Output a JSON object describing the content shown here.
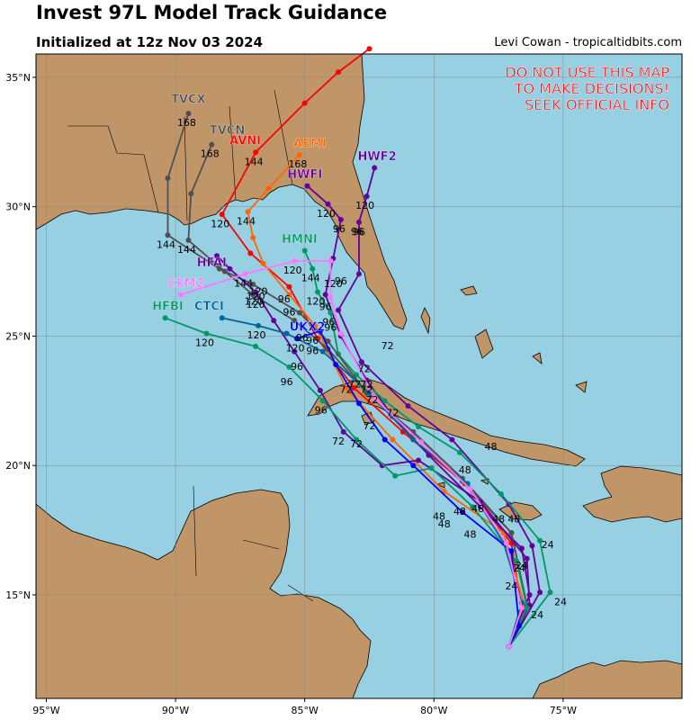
{
  "header": {
    "title": "Invest 97L Model Track Guidance",
    "subtitle": "Initialized at 12z Nov 03 2024",
    "credit": "Levi Cowan - tropicaltidbits.com"
  },
  "warning": {
    "lines": [
      "DO NOT USE THIS MAP",
      "TO MAKE DECISIONS!",
      "SEEK OFFICIAL INFO"
    ],
    "color": "#ff0000"
  },
  "colors": {
    "ocean": "#97cfe3",
    "land": "#c09668",
    "border": "#000000",
    "grid": "#888888"
  },
  "axes": {
    "lon_range": [
      -95.4,
      -70.4
    ],
    "lat_range": [
      11.0,
      35.9
    ],
    "lon_ticks": [
      {
        "lon": -95,
        "label": "95°W"
      },
      {
        "lon": -90,
        "label": "90°W"
      },
      {
        "lon": -85,
        "label": "85°W"
      },
      {
        "lon": -80,
        "label": "80°W"
      },
      {
        "lon": -75,
        "label": "75°W"
      }
    ],
    "lat_ticks": [
      {
        "lat": 15,
        "label": "15°N"
      },
      {
        "lat": 20,
        "label": "20°N"
      },
      {
        "lat": 25,
        "label": "25°N"
      },
      {
        "lat": 30,
        "label": "30°N"
      },
      {
        "lat": 35,
        "label": "35°N"
      }
    ]
  },
  "models": [
    {
      "name": "AVNI",
      "color": "#ff0000",
      "points": [
        [
          -77.1,
          13.0
        ],
        [
          -76.6,
          14.4
        ],
        [
          -77.0,
          17.0
        ],
        [
          -78.8,
          19.3
        ],
        [
          -81.2,
          21.3
        ],
        [
          -83.1,
          23.0
        ],
        [
          -84.5,
          24.9
        ],
        [
          -85.6,
          26.9
        ],
        [
          -87.1,
          28.2
        ],
        [
          -88.2,
          29.7
        ],
        [
          -86.9,
          32.1
        ],
        [
          -85.0,
          34.0
        ],
        [
          -83.7,
          35.2
        ],
        [
          -82.5,
          36.1
        ]
      ],
      "hours": [
        {
          "idx": 9,
          "label": "120"
        },
        {
          "idx": 10,
          "label": "144"
        }
      ],
      "name_at": [
        -87.3,
        32.4
      ]
    },
    {
      "name": "AEMI",
      "color": "#ff6600",
      "points": [
        [
          -77.1,
          13.0
        ],
        [
          -76.5,
          14.6
        ],
        [
          -77.3,
          17.4
        ],
        [
          -79.6,
          19.0
        ],
        [
          -81.6,
          21.0
        ],
        [
          -83.4,
          23.0
        ],
        [
          -84.6,
          25.4
        ],
        [
          -85.6,
          26.6
        ],
        [
          -86.6,
          27.8
        ],
        [
          -87.0,
          28.8
        ],
        [
          -87.2,
          29.8
        ],
        [
          -86.4,
          30.7
        ],
        [
          -85.2,
          32.0
        ]
      ],
      "hours": [
        {
          "idx": 10,
          "label": "144"
        },
        {
          "idx": 12,
          "label": "168"
        }
      ],
      "name_at": [
        -84.8,
        32.3
      ]
    },
    {
      "name": "HWF2",
      "color": "#660099",
      "points": [
        [
          -77.1,
          13.0
        ],
        [
          -75.9,
          15.1
        ],
        [
          -76.2,
          16.9
        ],
        [
          -77.1,
          18.5
        ],
        [
          -79.3,
          21.0
        ],
        [
          -81.0,
          22.3
        ],
        [
          -82.8,
          24.0
        ],
        [
          -83.7,
          26.0
        ],
        [
          -82.9,
          27.4
        ],
        [
          -82.9,
          29.4
        ],
        [
          -82.6,
          30.4
        ],
        [
          -82.3,
          31.5
        ]
      ],
      "hours": [
        {
          "idx": 9,
          "label": "96"
        },
        {
          "idx": 10,
          "label": "120"
        }
      ],
      "name_at": [
        -82.2,
        31.8
      ]
    },
    {
      "name": "HWFI",
      "color": "#660099",
      "points": [
        [
          -77.1,
          13.0
        ],
        [
          -76.3,
          15.0
        ],
        [
          -76.6,
          16.8
        ],
        [
          -78.2,
          18.4
        ],
        [
          -80.2,
          20.4
        ],
        [
          -81.6,
          21.9
        ],
        [
          -82.6,
          23.3
        ],
        [
          -83.6,
          25.0
        ],
        [
          -84.2,
          26.6
        ],
        [
          -83.9,
          28.0
        ],
        [
          -83.6,
          29.5
        ],
        [
          -84.1,
          30.1
        ],
        [
          -84.9,
          30.8
        ]
      ],
      "hours": [
        {
          "idx": 10,
          "label": "96"
        },
        {
          "idx": 11,
          "label": "120"
        }
      ],
      "name_at": [
        -85.0,
        31.1
      ]
    },
    {
      "name": "HMNI",
      "color": "#009966",
      "points": [
        [
          -77.1,
          13.0
        ],
        [
          -75.5,
          15.1
        ],
        [
          -75.9,
          17.1
        ],
        [
          -77.4,
          18.9
        ],
        [
          -79.0,
          20.5
        ],
        [
          -80.6,
          21.5
        ],
        [
          -81.9,
          22.5
        ],
        [
          -83.0,
          23.5
        ],
        [
          -83.7,
          24.3
        ],
        [
          -84.0,
          25.9
        ],
        [
          -84.5,
          26.7
        ],
        [
          -84.7,
          27.6
        ],
        [
          -85.0,
          28.3
        ]
      ],
      "hours": [
        {
          "idx": 7,
          "label": "72"
        },
        {
          "idx": 9,
          "label": "96"
        },
        {
          "idx": 10,
          "label": "120"
        },
        {
          "idx": 11,
          "label": "144"
        }
      ],
      "name_at": [
        -85.2,
        28.6
      ]
    },
    {
      "name": "TVCX",
      "color": "#505050",
      "points": [
        [
          -77.1,
          13.0
        ],
        [
          -76.4,
          14.6
        ],
        [
          -77.0,
          17.4
        ],
        [
          -78.9,
          19.5
        ],
        [
          -80.8,
          21.3
        ],
        [
          -82.6,
          22.8
        ],
        [
          -84.1,
          24.8
        ],
        [
          -85.2,
          25.9
        ],
        [
          -87.0,
          27.0
        ],
        [
          -88.3,
          27.6
        ],
        [
          -90.3,
          28.9
        ],
        [
          -90.3,
          31.1
        ],
        [
          -89.5,
          33.6
        ]
      ],
      "hours": [
        {
          "idx": 10,
          "label": "144"
        },
        {
          "idx": 12,
          "label": "168"
        }
      ],
      "name_at": [
        -89.5,
        34.0
      ]
    },
    {
      "name": "TVCN",
      "color": "#505050",
      "points": [
        [
          -77.1,
          13.0
        ],
        [
          -76.4,
          14.6
        ],
        [
          -77.0,
          17.4
        ],
        [
          -78.9,
          19.4
        ],
        [
          -80.8,
          21.2
        ],
        [
          -82.6,
          22.8
        ],
        [
          -84.1,
          24.5
        ],
        [
          -85.4,
          25.6
        ],
        [
          -87.0,
          26.6
        ],
        [
          -88.1,
          27.5
        ],
        [
          -89.5,
          28.7
        ],
        [
          -89.4,
          30.5
        ],
        [
          -88.6,
          32.4
        ]
      ],
      "hours": [
        {
          "idx": 10,
          "label": "144"
        },
        {
          "idx": 12,
          "label": "168"
        }
      ],
      "name_at": [
        -88.0,
        32.8
      ]
    },
    {
      "name": "HFAI",
      "color": "#660099",
      "points": [
        [
          -77.1,
          13.0
        ],
        [
          -76.3,
          14.6
        ],
        [
          -76.4,
          16.4
        ],
        [
          -78.2,
          18.6
        ],
        [
          -80.6,
          20.2
        ],
        [
          -82.0,
          20.0
        ],
        [
          -83.5,
          21.3
        ],
        [
          -84.4,
          22.9
        ],
        [
          -85.4,
          24.4
        ],
        [
          -86.2,
          25.6
        ],
        [
          -86.9,
          26.7
        ],
        [
          -87.9,
          27.6
        ],
        [
          -88.4,
          28.1
        ]
      ],
      "hours": [
        {
          "idx": 10,
          "label": "120"
        }
      ],
      "name_at": [
        -88.6,
        27.7
      ]
    },
    {
      "name": "CTCI",
      "color": "#006699",
      "points": [
        [
          -77.1,
          13.0
        ],
        [
          -76.6,
          14.7
        ],
        [
          -77.3,
          17.0
        ],
        [
          -78.7,
          19.3
        ],
        [
          -80.8,
          21.0
        ],
        [
          -82.5,
          22.8
        ],
        [
          -84.3,
          24.4
        ],
        [
          -85.7,
          25.1
        ],
        [
          -86.8,
          25.4
        ],
        [
          -88.2,
          25.7
        ]
      ],
      "hours": [
        {
          "idx": 8,
          "label": "120"
        }
      ],
      "name_at": [
        -88.7,
        26.0
      ]
    },
    {
      "name": "HFBI",
      "color": "#009966",
      "points": [
        [
          -77.1,
          13.0
        ],
        [
          -76.4,
          14.5
        ],
        [
          -76.8,
          16.3
        ],
        [
          -78.5,
          18.4
        ],
        [
          -80.1,
          19.9
        ],
        [
          -81.5,
          19.6
        ],
        [
          -83.0,
          21.0
        ],
        [
          -84.3,
          22.5
        ],
        [
          -85.6,
          23.8
        ],
        [
          -86.9,
          24.6
        ],
        [
          -88.8,
          25.1
        ],
        [
          -90.4,
          25.7
        ]
      ],
      "hours": [
        {
          "idx": 7,
          "label": "96"
        },
        {
          "idx": 10,
          "label": "120"
        }
      ],
      "name_at": [
        -90.3,
        26.0
      ]
    },
    {
      "name": "UKX2",
      "color": "#0000ff",
      "points": [
        [
          -77.1,
          13.0
        ],
        [
          -76.7,
          13.8
        ],
        [
          -77.0,
          16.7
        ],
        [
          -78.9,
          18.2
        ],
        [
          -80.8,
          20.0
        ],
        [
          -81.9,
          21.0
        ],
        [
          -82.9,
          22.4
        ],
        [
          -83.8,
          23.9
        ],
        [
          -84.4,
          25.2
        ],
        [
          -85.3,
          24.9
        ]
      ],
      "hours": [
        {
          "idx": 9,
          "label": "120"
        }
      ],
      "name_at": [
        -84.9,
        25.2
      ]
    },
    {
      "name": "CEM2",
      "color": "#ff77ff",
      "points": [
        [
          -77.1,
          13.0
        ],
        [
          -76.6,
          14.5
        ],
        [
          -77.2,
          17.0
        ],
        [
          -78.6,
          19.1
        ],
        [
          -80.5,
          20.9
        ],
        [
          -82.3,
          22.6
        ],
        [
          -83.6,
          25.1
        ],
        [
          -84.0,
          26.5
        ],
        [
          -84.0,
          27.9
        ],
        [
          -85.4,
          27.9
        ],
        [
          -87.3,
          27.4
        ],
        [
          -89.8,
          26.6
        ]
      ],
      "hours": [
        {
          "idx": 9,
          "label": "120"
        },
        {
          "idx": 10,
          "label": "144"
        }
      ],
      "name_at": [
        -89.6,
        26.9
      ]
    }
  ],
  "hour_labels": [
    {
      "label": "24",
      "lon": -76.0,
      "lat": 14.1
    },
    {
      "label": "24",
      "lon": -75.1,
      "lat": 14.6
    },
    {
      "label": "24",
      "lon": -77.0,
      "lat": 15.2
    },
    {
      "label": "24",
      "lon": -76.6,
      "lat": 16.0
    },
    {
      "label": "24",
      "lon": -75.6,
      "lat": 16.8
    },
    {
      "label": "24",
      "lon": -76.7,
      "lat": 15.9
    },
    {
      "label": "48",
      "lon": -79.0,
      "lat": 18.1
    },
    {
      "label": "48",
      "lon": -79.6,
      "lat": 17.6
    },
    {
      "label": "48",
      "lon": -78.6,
      "lat": 17.2
    },
    {
      "label": "48",
      "lon": -78.3,
      "lat": 18.2
    },
    {
      "label": "48",
      "lon": -77.5,
      "lat": 17.8
    },
    {
      "label": "48",
      "lon": -76.9,
      "lat": 17.8
    },
    {
      "label": "48",
      "lon": -78.8,
      "lat": 19.7
    },
    {
      "label": "48",
      "lon": -77.8,
      "lat": 20.6
    },
    {
      "label": "48",
      "lon": -79.8,
      "lat": 17.9
    },
    {
      "label": "72",
      "lon": -81.6,
      "lat": 21.9
    },
    {
      "label": "72",
      "lon": -82.4,
      "lat": 22.4
    },
    {
      "label": "72",
      "lon": -82.6,
      "lat": 22.8
    },
    {
      "label": "72",
      "lon": -82.5,
      "lat": 21.4
    },
    {
      "label": "72",
      "lon": -83.0,
      "lat": 20.7
    },
    {
      "label": "72",
      "lon": -83.7,
      "lat": 20.8
    },
    {
      "label": "72",
      "lon": -83.4,
      "lat": 22.8
    },
    {
      "label": "72",
      "lon": -82.6,
      "lat": 23.0
    },
    {
      "label": "72",
      "lon": -82.7,
      "lat": 23.6
    },
    {
      "label": "72",
      "lon": -81.8,
      "lat": 24.5
    },
    {
      "label": "96",
      "lon": -84.7,
      "lat": 24.3
    },
    {
      "label": "96",
      "lon": -85.3,
      "lat": 23.7
    },
    {
      "label": "96",
      "lon": -85.7,
      "lat": 23.1
    },
    {
      "label": "96",
      "lon": -84.0,
      "lat": 25.2
    },
    {
      "label": "96",
      "lon": -84.7,
      "lat": 24.7
    },
    {
      "label": "96",
      "lon": -85.6,
      "lat": 25.8
    },
    {
      "label": "96",
      "lon": -84.2,
      "lat": 26.0
    },
    {
      "label": "96",
      "lon": -83.6,
      "lat": 27.0
    },
    {
      "label": "96",
      "lon": -82.9,
      "lat": 28.9
    },
    {
      "label": "96",
      "lon": -85.8,
      "lat": 26.3
    },
    {
      "label": "96",
      "lon": -85.1,
      "lat": 24.8
    },
    {
      "label": "120",
      "lon": -86.9,
      "lat": 26.1
    },
    {
      "label": "120",
      "lon": -86.9,
      "lat": 26.4
    },
    {
      "label": "120",
      "lon": -86.8,
      "lat": 26.6
    },
    {
      "label": "120",
      "lon": -83.9,
      "lat": 26.9
    }
  ],
  "places": []
}
